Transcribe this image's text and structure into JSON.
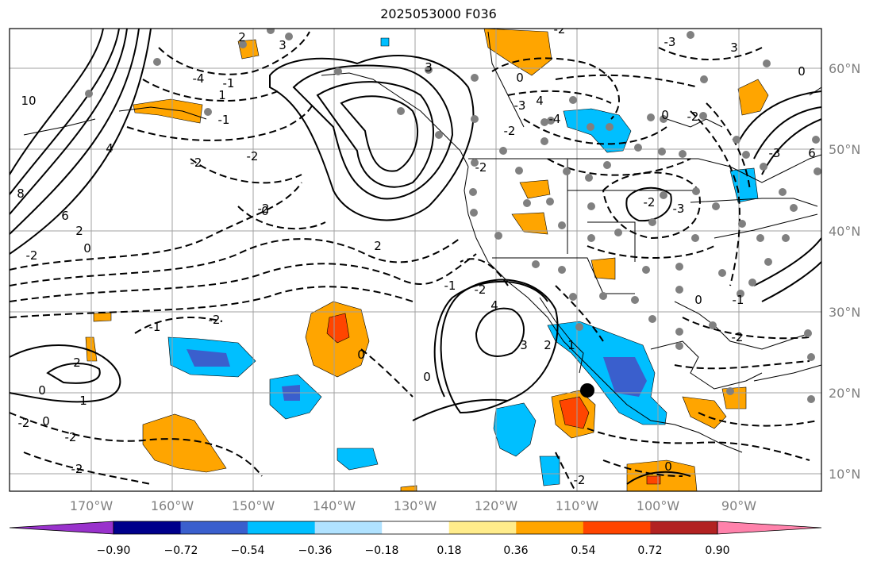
{
  "title": "2025053000 F036",
  "lon_labels": [
    "170°W",
    "160°W",
    "150°W",
    "140°W",
    "130°W",
    "120°W",
    "110°W",
    "100°W",
    "90°W"
  ],
  "lat_labels": [
    "60°N",
    "50°N",
    "40°N",
    "30°N",
    "20°N",
    "10°N"
  ],
  "colorbar": {
    "ticks": [
      "−0.90",
      "−0.72",
      "−0.54",
      "−0.36",
      "−0.18",
      "0.18",
      "0.36",
      "0.54",
      "0.72",
      "0.90"
    ],
    "colors": [
      "#9932cc",
      "#00008b",
      "#3a5fcd",
      "#00bfff",
      "#b0e2ff",
      "#ffffff",
      "#ffec8b",
      "#ffa500",
      "#ff4500",
      "#b22222",
      "#ff82ab"
    ]
  },
  "contour_labels": [
    "8",
    "10",
    "6",
    "4",
    "2",
    "0",
    "-2",
    "-4",
    "2",
    "3",
    "-1",
    "-1",
    "1",
    "-2",
    "-2",
    "-1",
    "3",
    "4",
    "-3",
    "-4",
    "-2",
    "2",
    "0",
    "-2",
    "-3",
    "-2",
    "0",
    "-1",
    "-2",
    "-2",
    "4",
    "3",
    "2",
    "1",
    "0",
    "2",
    "1",
    "0",
    "-2",
    "0",
    "-2",
    "-2",
    "0",
    "-2",
    "3",
    "6",
    "-3",
    "-3",
    "0",
    "-2",
    "0",
    "-2",
    "0",
    "-2",
    "-2",
    "-1",
    "0"
  ],
  "colors": {
    "land_outline": "#000000",
    "grid": "#a0a0a0",
    "station_dot": "#808080",
    "marker": "#000000"
  }
}
